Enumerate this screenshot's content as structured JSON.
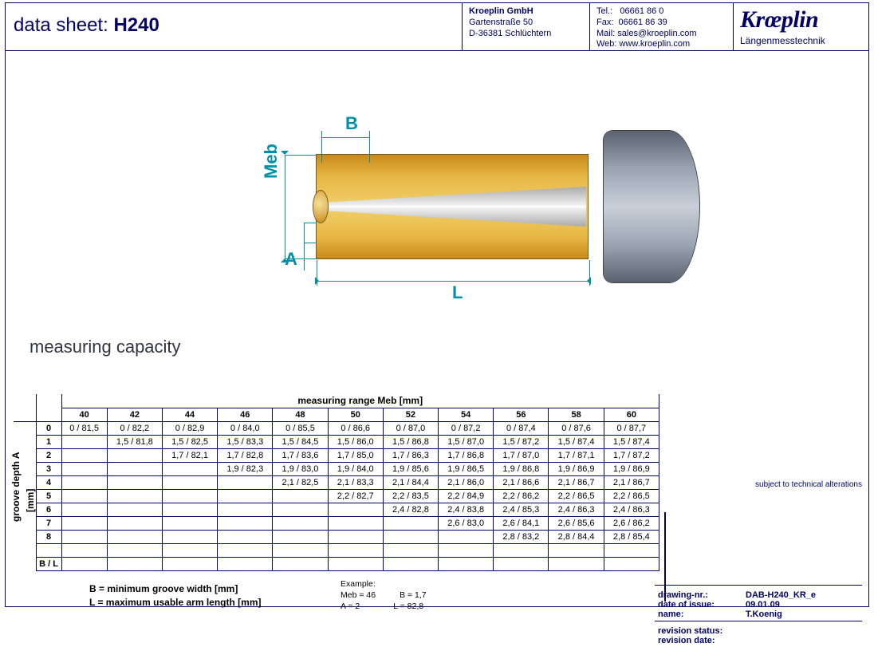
{
  "colors": {
    "frame": "#000066",
    "dimension": "#0090a8",
    "brass1": "#c88a1a",
    "brass2": "#f1d06a",
    "steel": "#c8cfd8"
  },
  "header": {
    "title_prefix": "data sheet:  ",
    "title_model": "H240",
    "company": "Kroeplin GmbH",
    "street": "Gartenstraße 50",
    "city": "D-36381 Schlüchtern",
    "tel_label": "Tel.:",
    "tel": "06661 86 0",
    "fax_label": "Fax:",
    "fax": "06661 86 39",
    "mail_label": "Mail:",
    "mail": "sales@kroeplin.com",
    "web_label": "Web:",
    "web": "www.kroeplin.com",
    "logo": "Krœplin",
    "logo_sub": "Längenmesstechnik"
  },
  "diagram": {
    "B": "B",
    "Meb": "Meb",
    "A": "A",
    "L": "L"
  },
  "section_title": "measuring capacity",
  "table": {
    "top_header": "measuring range   Meb   [mm]",
    "side_header": "groove depth   A",
    "side_unit": "[mm]",
    "columns": [
      "40",
      "42",
      "44",
      "46",
      "48",
      "50",
      "52",
      "54",
      "56",
      "58",
      "60"
    ],
    "row_heads": [
      "0",
      "1",
      "2",
      "3",
      "4",
      "5",
      "6",
      "7",
      "8",
      "",
      "B / L"
    ],
    "rows": [
      [
        "0 / 81,5",
        "0 / 82,2",
        "0 / 82,9",
        "0 / 84,0",
        "0 / 85,5",
        "0 / 86,6",
        "0 / 87,0",
        "0 / 87,2",
        "0 / 87,4",
        "0 / 87,6",
        "0 / 87,7"
      ],
      [
        "",
        "1,5 / 81,8",
        "1,5 / 82,5",
        "1,5 / 83,3",
        "1,5 / 84,5",
        "1,5 / 86,0",
        "1,5 / 86,8",
        "1,5 / 87,0",
        "1,5 / 87,2",
        "1,5 / 87,4",
        "1,5 / 87,4"
      ],
      [
        "",
        "",
        "1,7 / 82,1",
        "1,7 / 82,8",
        "1,7 / 83,6",
        "1,7 / 85,0",
        "1,7 / 86,3",
        "1,7 / 86,8",
        "1,7 / 87,0",
        "1,7 / 87,1",
        "1,7 / 87,2"
      ],
      [
        "",
        "",
        "",
        "1,9 / 82,3",
        "1,9 / 83,0",
        "1,9 / 84,0",
        "1,9 / 85,6",
        "1,9 / 86,5",
        "1,9 / 86,8",
        "1,9 / 86,9",
        "1,9 / 86,9"
      ],
      [
        "",
        "",
        "",
        "",
        "2,1 / 82,5",
        "2,1 / 83,3",
        "2,1 / 84,4",
        "2,1 / 86,0",
        "2,1 / 86,6",
        "2,1 / 86,7",
        "2,1 / 86,7"
      ],
      [
        "",
        "",
        "",
        "",
        "",
        "2,2 / 82,7",
        "2,2 / 83,5",
        "2,2 / 84,9",
        "2,2 / 86,2",
        "2,2 / 86,5",
        "2,2 / 86,5"
      ],
      [
        "",
        "",
        "",
        "",
        "",
        "",
        "2,4 / 82,8",
        "2,4 / 83,8",
        "2,4 / 85,3",
        "2,4 / 86,3",
        "2,4 / 86,3"
      ],
      [
        "",
        "",
        "",
        "",
        "",
        "",
        "",
        "2,6 / 83,0",
        "2,6 / 84,1",
        "2,6 / 85,6",
        "2,6 / 86,2"
      ],
      [
        "",
        "",
        "",
        "",
        "",
        "",
        "",
        "",
        "2,8 / 83,2",
        "2,8 / 84,4",
        "2,8 / 85,4"
      ],
      [
        "",
        "",
        "",
        "",
        "",
        "",
        "",
        "",
        "",
        "",
        ""
      ],
      [
        "",
        "",
        "",
        "",
        "",
        "",
        "",
        "",
        "",
        "",
        ""
      ]
    ]
  },
  "legend": {
    "B": "B = minimum groove width [mm]",
    "L": "L = maximum usable arm length [mm]"
  },
  "example": {
    "title": "Example:",
    "l1a": "Meb = 46",
    "l1b": "B  = 1,7",
    "l2a": "A  = 2",
    "l2b": "L  = 82,8"
  },
  "footer": {
    "note": "subject to technical alterations",
    "drawing_nr_k": "drawing-nr.:",
    "drawing_nr_v": "DAB-H240_KR_e",
    "date_k": "date of issue:",
    "date_v": "09.01.09",
    "name_k": "name:",
    "name_v": "T.Koenig",
    "rev_status_k": "revision status:",
    "rev_status_v": "",
    "rev_date_k": "revision date:",
    "rev_date_v": ""
  }
}
